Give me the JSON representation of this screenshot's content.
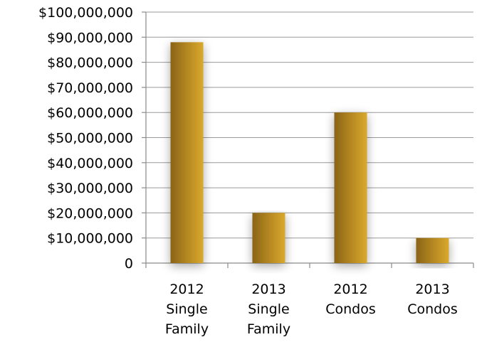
{
  "chart_data": {
    "type": "bar",
    "categories": [
      [
        "2012",
        "Single",
        "Family"
      ],
      [
        "2013",
        "Single",
        "Family"
      ],
      [
        "2012",
        "Condos"
      ],
      [
        "2013",
        "Condos"
      ]
    ],
    "values": [
      88000000,
      20000000,
      60000000,
      10000000
    ],
    "ylim": [
      0,
      100000000
    ],
    "yticks": [
      {
        "value": 0,
        "label": "0"
      },
      {
        "value": 10000000,
        "label": "$10,000,000"
      },
      {
        "value": 20000000,
        "label": "$20,000,000"
      },
      {
        "value": 30000000,
        "label": "$30,000,000"
      },
      {
        "value": 40000000,
        "label": "$40,000,000"
      },
      {
        "value": 50000000,
        "label": "$50,000,000"
      },
      {
        "value": 60000000,
        "label": "$60,000,000"
      },
      {
        "value": 70000000,
        "label": "$70,000,000"
      },
      {
        "value": 80000000,
        "label": "$80,000,000"
      },
      {
        "value": 90000000,
        "label": "$90,000,000"
      },
      {
        "value": 100000000,
        "label": "$100,000,000"
      }
    ],
    "grid": true,
    "legend": "none",
    "colors": {
      "bar_dark": "#8a6417",
      "bar_mid": "#b88a22",
      "bar_light": "#d9a92e",
      "grid": "#9a9a9a",
      "axis": "#8a8a8a"
    }
  }
}
